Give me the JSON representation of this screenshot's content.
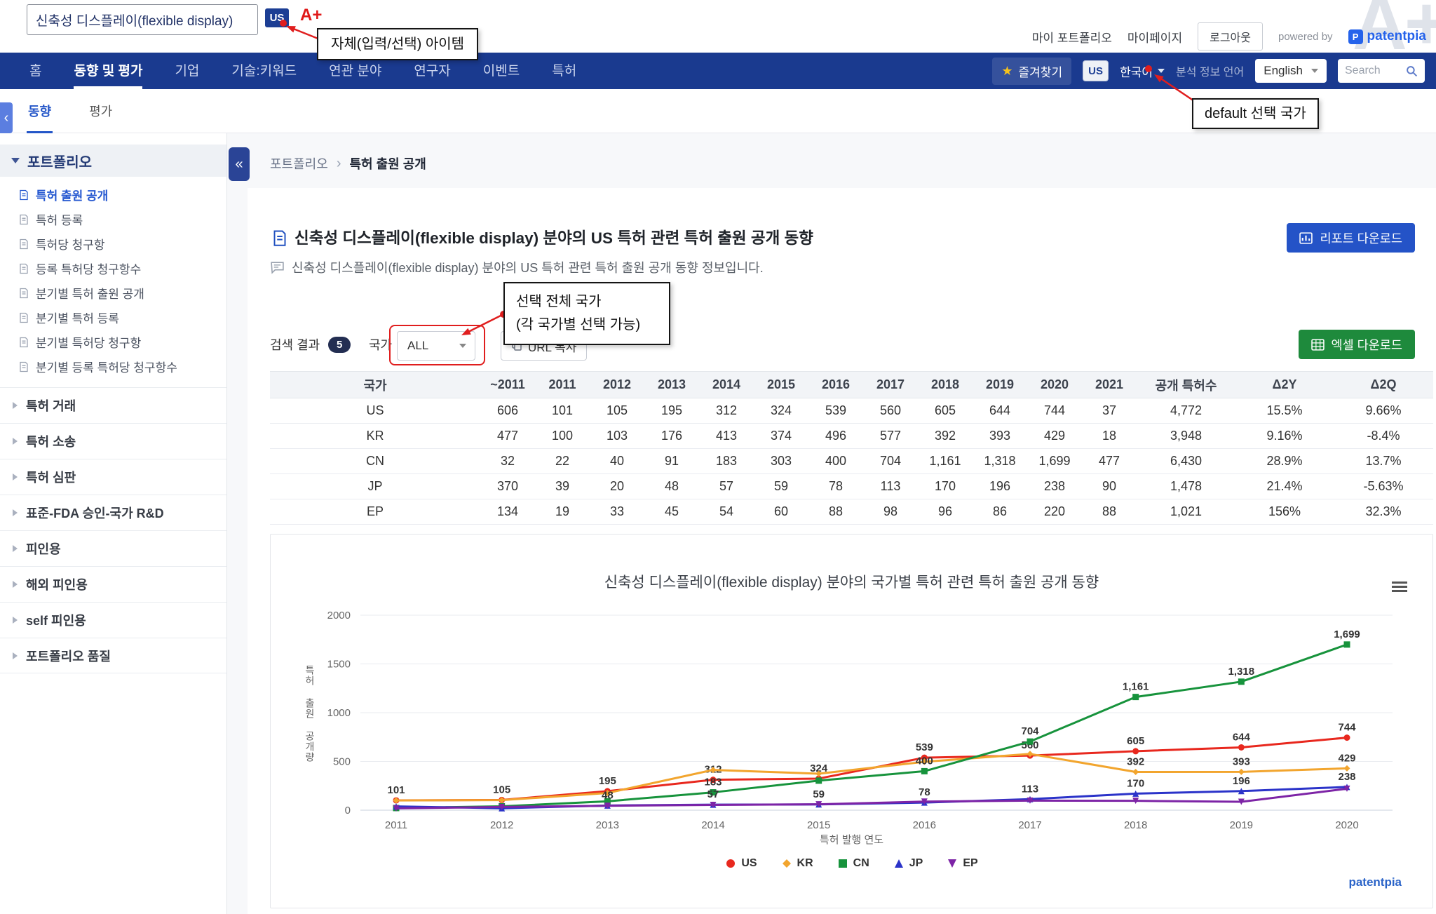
{
  "colors": {
    "navbar": "#1a3a8f",
    "primary_blue": "#2453c7",
    "excel_green": "#1e8a3c",
    "annotation_red": "#e01e1e",
    "active_link": "#2457d0"
  },
  "icons": {
    "favorite": "star",
    "nav_search": "magnifier",
    "report": "bar-chart-document",
    "excel": "grid-table",
    "url_copy": "copy",
    "title": "document-edit",
    "subtitle": "speech-bubble",
    "chart_menu": "hamburger",
    "sidebar_item": "document-edit",
    "collapse": "double-chevron-left"
  },
  "header": {
    "search_value": "신축성 디스플레이(flexible display)",
    "search_badge": "US",
    "grade": "A+",
    "watermark": "A+",
    "links": [
      "마이 포트폴리오",
      "마이페이지"
    ],
    "logout_label": "로그아웃",
    "powered_by": "powered by",
    "brand": "patentpia",
    "brand_initial": "P"
  },
  "annotations": {
    "item_callout": "자체(입력/선택) 아이템",
    "default_country_callout": "default 선택 국가",
    "country_callout_line1": "선택 전체 국가",
    "country_callout_line2": "(각 국가별 선택 가능)"
  },
  "nav": {
    "items": [
      {
        "label": "홈",
        "active": false
      },
      {
        "label": "동향 및 평가",
        "active": true
      },
      {
        "label": "기업",
        "active": false
      },
      {
        "label": "기술:키워드",
        "active": false
      },
      {
        "label": "연관 분야",
        "active": false
      },
      {
        "label": "연구자",
        "active": false
      },
      {
        "label": "이벤트",
        "active": false
      },
      {
        "label": "특허",
        "active": false
      }
    ],
    "favorite_label": "즐겨찾기",
    "country_badge": "US",
    "language_label": "한국어",
    "analysis_lang_label": "분석 정보 언어",
    "analysis_lang_value": "English",
    "search_placeholder": "Search"
  },
  "tabs": {
    "items": [
      {
        "label": "동향",
        "active": true
      },
      {
        "label": "평가",
        "active": false
      }
    ]
  },
  "sidebar": {
    "group_title": "포트폴리오",
    "active_index": 0,
    "portfolio_items": [
      "특허 출원 공개",
      "특허 등록",
      "특허당 청구항",
      "등록 특허당 청구항수",
      "분기별 특허 출원 공개",
      "분기별 특허 등록",
      "분기별 특허당 청구항",
      "분기별 등록 특허당 청구항수"
    ],
    "sections": [
      "특허 거래",
      "특허 소송",
      "특허 심판",
      "표준-FDA 승인-국가 R&D",
      "피인용",
      "해외 피인용",
      "self 피인용",
      "포트폴리오 품질"
    ]
  },
  "breadcrumb": [
    "포트폴리오",
    "특허 출원 공개"
  ],
  "main": {
    "title": "신축성 디스플레이(flexible display) 분야의 US 특허 관련 특허 출원 공개 동향",
    "subtitle": "신축성 디스플레이(flexible display) 분야의 US 특허 관련 특허 출원 공개 동향 정보입니다.",
    "report_button": "리포트 다운로드",
    "excel_button": "엑셀 다운로드",
    "result_label": "검색 결과",
    "result_count": "5",
    "country_label": "국가",
    "country_value": "ALL",
    "url_copy_button": "URL 복사"
  },
  "table": {
    "headers": [
      "국가",
      "~2011",
      "2011",
      "2012",
      "2013",
      "2014",
      "2015",
      "2016",
      "2017",
      "2018",
      "2019",
      "2020",
      "2021",
      "공개 특허수",
      "Δ2Y",
      "Δ2Q"
    ],
    "rows": [
      [
        "US",
        "606",
        "101",
        "105",
        "195",
        "312",
        "324",
        "539",
        "560",
        "605",
        "644",
        "744",
        "37",
        "4,772",
        "15.5%",
        "9.66%"
      ],
      [
        "KR",
        "477",
        "100",
        "103",
        "176",
        "413",
        "374",
        "496",
        "577",
        "392",
        "393",
        "429",
        "18",
        "3,948",
        "9.16%",
        "-8.4%"
      ],
      [
        "CN",
        "32",
        "22",
        "40",
        "91",
        "183",
        "303",
        "400",
        "704",
        "1,161",
        "1,318",
        "1,699",
        "477",
        "6,430",
        "28.9%",
        "13.7%"
      ],
      [
        "JP",
        "370",
        "39",
        "20",
        "48",
        "57",
        "59",
        "78",
        "113",
        "170",
        "196",
        "238",
        "90",
        "1,478",
        "21.4%",
        "-5.63%"
      ],
      [
        "EP",
        "134",
        "19",
        "33",
        "45",
        "54",
        "60",
        "88",
        "98",
        "96",
        "86",
        "220",
        "88",
        "1,021",
        "156%",
        "32.3%"
      ]
    ]
  },
  "chart_data": {
    "type": "line",
    "title": "신축성 디스플레이(flexible display) 분야의 국가별 특허 관련 특허 출원 공개 동향",
    "xlabel": "특허 발행 연도",
    "ylabel": "특허 출원 공개량",
    "watermark": "patentpia",
    "x": [
      2011,
      2012,
      2013,
      2014,
      2015,
      2016,
      2017,
      2018,
      2019,
      2020
    ],
    "ylim": [
      0,
      2000
    ],
    "yticks": [
      0,
      500,
      1000,
      1500,
      2000
    ],
    "grid": true,
    "legend_position": "bottom",
    "series": [
      {
        "name": "US",
        "color": "#e8281e",
        "marker": "circle",
        "values": [
          101,
          105,
          195,
          312,
          324,
          539,
          560,
          605,
          644,
          744
        ],
        "labeled_indices": [
          0,
          1,
          2,
          3,
          4,
          5,
          6,
          7,
          8,
          9
        ]
      },
      {
        "name": "KR",
        "color": "#f2a52e",
        "marker": "diamond",
        "values": [
          100,
          103,
          176,
          413,
          374,
          496,
          577,
          392,
          393,
          429
        ],
        "labeled_indices": [
          7,
          8,
          9
        ]
      },
      {
        "name": "CN",
        "color": "#17933c",
        "marker": "square",
        "values": [
          22,
          40,
          91,
          183,
          303,
          400,
          704,
          1161,
          1318,
          1699
        ],
        "labeled_indices": [
          3,
          5,
          6,
          7,
          8,
          9
        ]
      },
      {
        "name": "JP",
        "color": "#2b33c9",
        "marker": "triangle",
        "values": [
          39,
          20,
          48,
          57,
          59,
          78,
          113,
          170,
          196,
          238
        ],
        "labeled_indices": [
          2,
          3,
          4,
          5,
          6,
          7,
          8,
          9
        ]
      },
      {
        "name": "EP",
        "color": "#7d24a6",
        "marker": "triangle-down",
        "values": [
          19,
          33,
          45,
          54,
          60,
          88,
          98,
          96,
          86,
          220
        ],
        "labeled_indices": []
      }
    ]
  }
}
